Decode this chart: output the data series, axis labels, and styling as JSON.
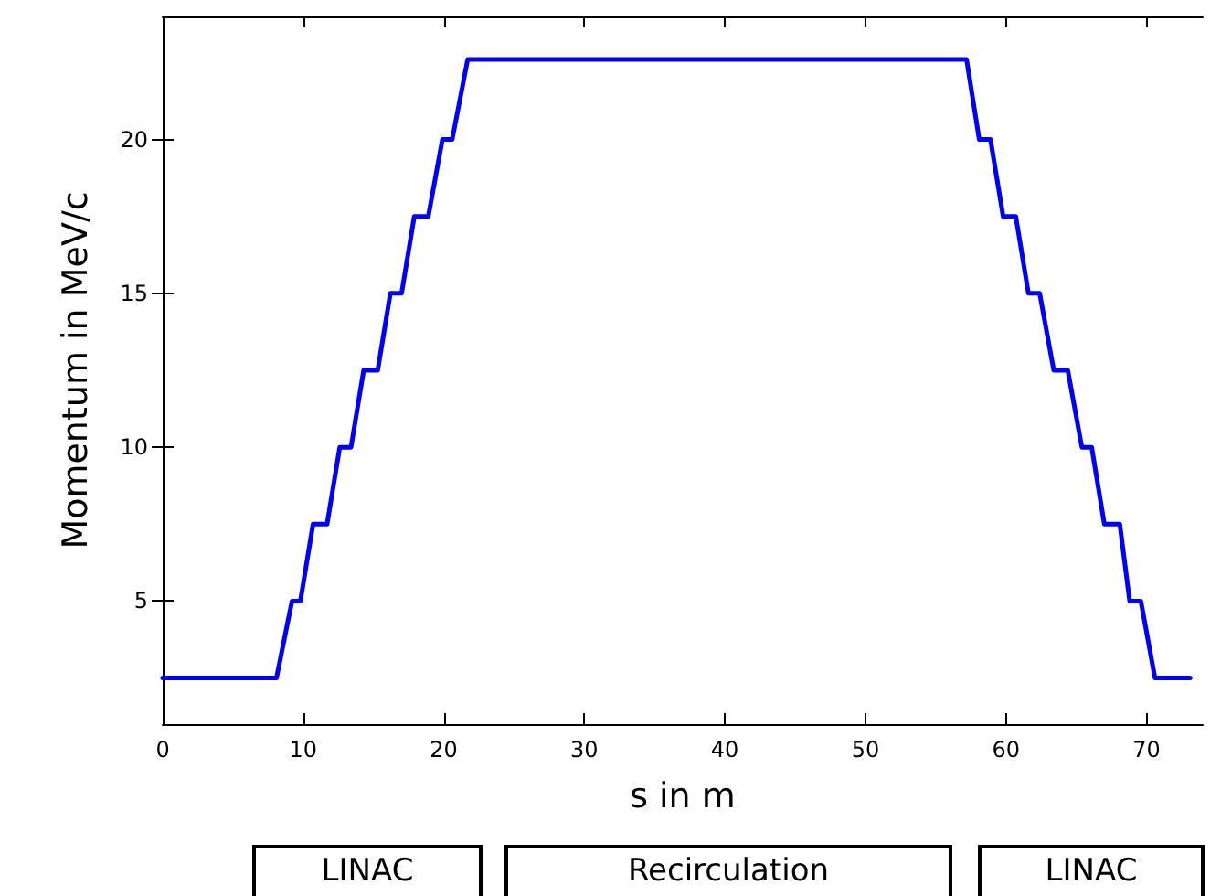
{
  "chart_data": {
    "type": "line",
    "xlabel": "s in m",
    "ylabel": "Momentum in MeV/c",
    "x": [
      0,
      8.1,
      9.2,
      9.8,
      10.7,
      11.7,
      12.6,
      13.4,
      14.3,
      15.3,
      16.2,
      17.0,
      17.9,
      18.9,
      19.9,
      20.6,
      21.7,
      57.2,
      58.1,
      58.9,
      59.8,
      60.7,
      61.6,
      62.4,
      63.4,
      64.4,
      65.4,
      66.1,
      67.0,
      68.1,
      68.8,
      69.6,
      70.6,
      73.1
    ],
    "series": [
      {
        "color": "#0000ff",
        "values": [
          2.5,
          2.5,
          5,
          5,
          7.5,
          7.5,
          10,
          10,
          12.5,
          12.5,
          15,
          15,
          17.5,
          17.5,
          20,
          20,
          22.6,
          22.6,
          20,
          20,
          17.5,
          17.5,
          15,
          15,
          12.5,
          12.5,
          10,
          10,
          7.5,
          7.5,
          5,
          5,
          2.5,
          2.5
        ]
      }
    ],
    "xlim": [
      0,
      74
    ],
    "ylim": [
      1,
      24
    ],
    "xticks": [
      0,
      10,
      20,
      30,
      40,
      50,
      60,
      70
    ],
    "yticks": [
      5,
      10,
      15,
      20
    ],
    "grid": false,
    "marker": "none",
    "line_style": "solid",
    "annotations": [
      "LINAC",
      "Recirculation",
      "LINAC"
    ]
  }
}
